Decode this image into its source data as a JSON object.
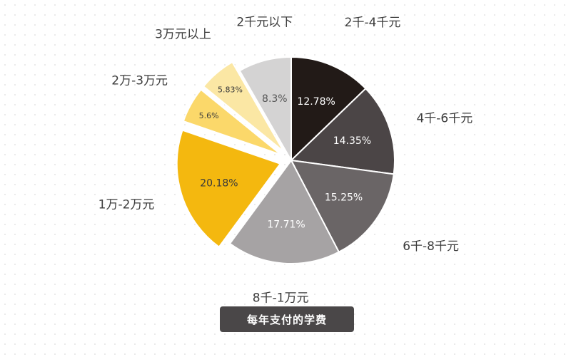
{
  "chart_data": {
    "type": "pie",
    "caption": "每年支付的学费",
    "slices": [
      {
        "label": "2千-4千元",
        "value": 12.78,
        "value_label": "12.78%",
        "color": "#221a17",
        "text_color": "#ffffff",
        "exploded": false
      },
      {
        "label": "4千-6千元",
        "value": 14.35,
        "value_label": "14.35%",
        "color": "#4b4546",
        "text_color": "#ffffff",
        "exploded": false
      },
      {
        "label": "6千-8千元",
        "value": 15.25,
        "value_label": "15.25%",
        "color": "#6a6566",
        "text_color": "#ffffff",
        "exploded": false
      },
      {
        "label": "8千-1万元",
        "value": 17.71,
        "value_label": "17.71%",
        "color": "#a6a3a4",
        "text_color": "#ffffff",
        "exploded": false
      },
      {
        "label": "1万-2万元",
        "value": 20.18,
        "value_label": "20.18%",
        "color": "#f4b80f",
        "text_color": "#3a3a3a",
        "exploded": true
      },
      {
        "label": "2万-3万元",
        "value": 5.6,
        "value_label": "5.6%",
        "color": "#fbd86a",
        "text_color": "#3a3a3a",
        "exploded": true
      },
      {
        "label": "3万元以上",
        "value": 5.83,
        "value_label": "5.83%",
        "color": "#fbe7a4",
        "text_color": "#3a3a3a",
        "exploded": true
      },
      {
        "label": "2千元以下",
        "value": 8.3,
        "value_label": "8.3%",
        "color": "#d4d3d3",
        "text_color": "#555555",
        "exploded": false
      }
    ],
    "start": "12 o'clock",
    "direction": "clockwise"
  }
}
